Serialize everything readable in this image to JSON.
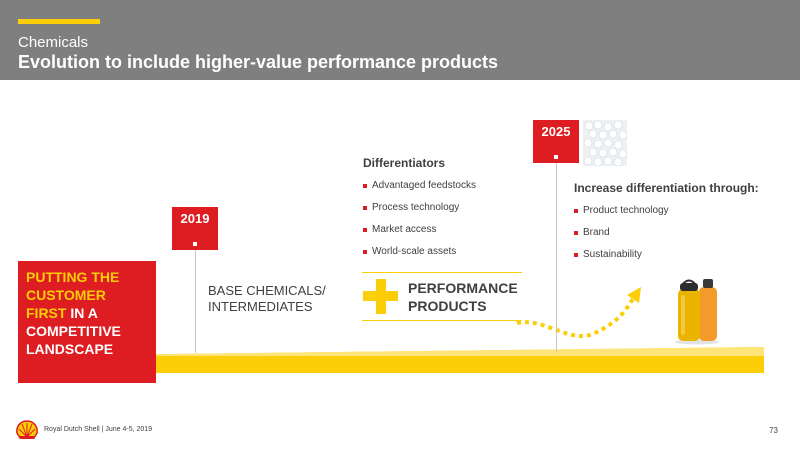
{
  "header": {
    "section": "Chemicals",
    "title": "Evolution to include higher-value performance products"
  },
  "customer_box": {
    "line1_yellow": "PUTTING THE",
    "line2_yellow": "CUSTOMER",
    "line3_yellow": "FIRST",
    "line3_white": " IN A",
    "line4_white": "COMPETITIVE",
    "line5_white": "LANDSCAPE"
  },
  "milestones": {
    "y2019": "2019",
    "y2025": "2025"
  },
  "base": {
    "line1": "BASE CHEMICALS/",
    "line2": "INTERMEDIATES"
  },
  "differentiators": {
    "heading": "Differentiators",
    "items": [
      "Advantaged feedstocks",
      "Process technology",
      "Market access",
      "World-scale assets"
    ]
  },
  "performance": {
    "line1": "PERFORMANCE",
    "line2": "PRODUCTS"
  },
  "increase": {
    "heading": "Increase differentiation through:",
    "items": [
      "Product technology",
      "Brand",
      "Sustainability"
    ]
  },
  "footer": {
    "company": "Royal Dutch Shell | June 4-5, 2019",
    "page": "73"
  },
  "colors": {
    "shell_red": "#dd1d21",
    "shell_yellow": "#fbce07",
    "header_gray": "#7f7f7f"
  }
}
